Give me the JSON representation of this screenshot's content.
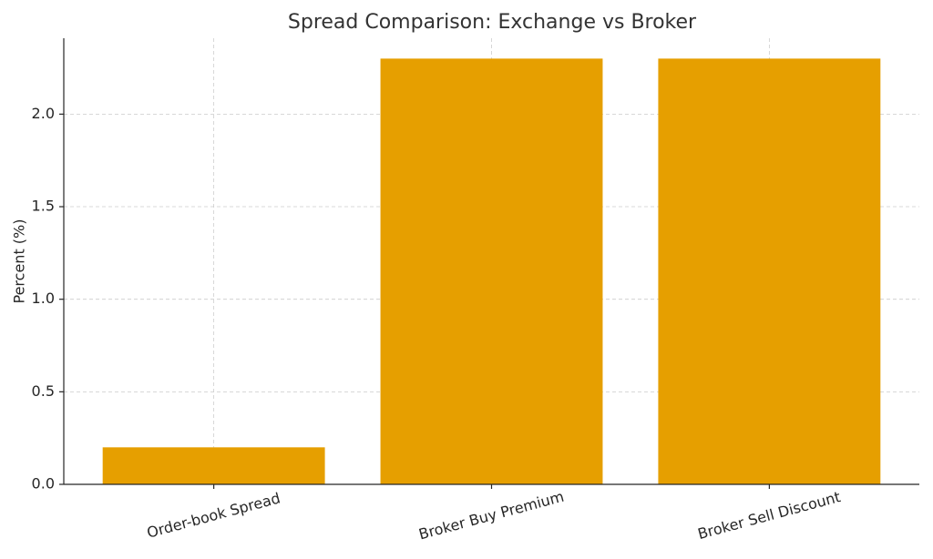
{
  "chart_data": {
    "type": "bar",
    "title": "Spread Comparison: Exchange vs Broker",
    "y_label": "Percent (%)",
    "categories": [
      "Order-book Spread",
      "Broker Buy Premium",
      "Broker Sell Discount"
    ],
    "values": [
      0.2,
      2.3,
      2.3
    ],
    "color": "#e69f00",
    "ylim": [
      0,
      2.41
    ],
    "yticks": [
      {
        "value": 0,
        "label": "0.0"
      },
      0.5,
      {
        "value": 1,
        "label": "1.0"
      },
      1.5,
      {
        "value": 2,
        "label": "2.0"
      }
    ],
    "grid": true
  }
}
